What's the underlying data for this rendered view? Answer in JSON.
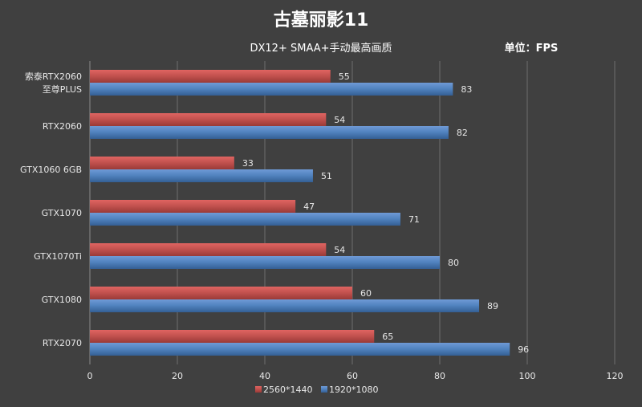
{
  "chart_data": {
    "type": "bar",
    "orientation": "horizontal",
    "title": "古墓丽影11",
    "subtitle": "DX12+ SMAA+手动最高画质",
    "unit": "单位：FPS",
    "categories": [
      [
        "索泰RTX2060",
        "至尊PLUS"
      ],
      [
        "RTX2060"
      ],
      [
        "GTX1060 6GB"
      ],
      [
        "GTX1070"
      ],
      [
        "GTX1070Ti"
      ],
      [
        "GTX1080"
      ],
      [
        "RTX2070"
      ]
    ],
    "series": [
      {
        "name": "2560*1440",
        "color": "#c0504d",
        "values": [
          55,
          54,
          33,
          47,
          54,
          60,
          65
        ]
      },
      {
        "name": "1920*1080",
        "color": "#4f81bd",
        "values": [
          83,
          82,
          51,
          71,
          80,
          89,
          96
        ]
      }
    ],
    "xlim": [
      0,
      120
    ],
    "xticks": [
      0,
      20,
      40,
      60,
      80,
      100,
      120
    ],
    "grid": true,
    "legend": "bottom",
    "background": "#404040"
  }
}
